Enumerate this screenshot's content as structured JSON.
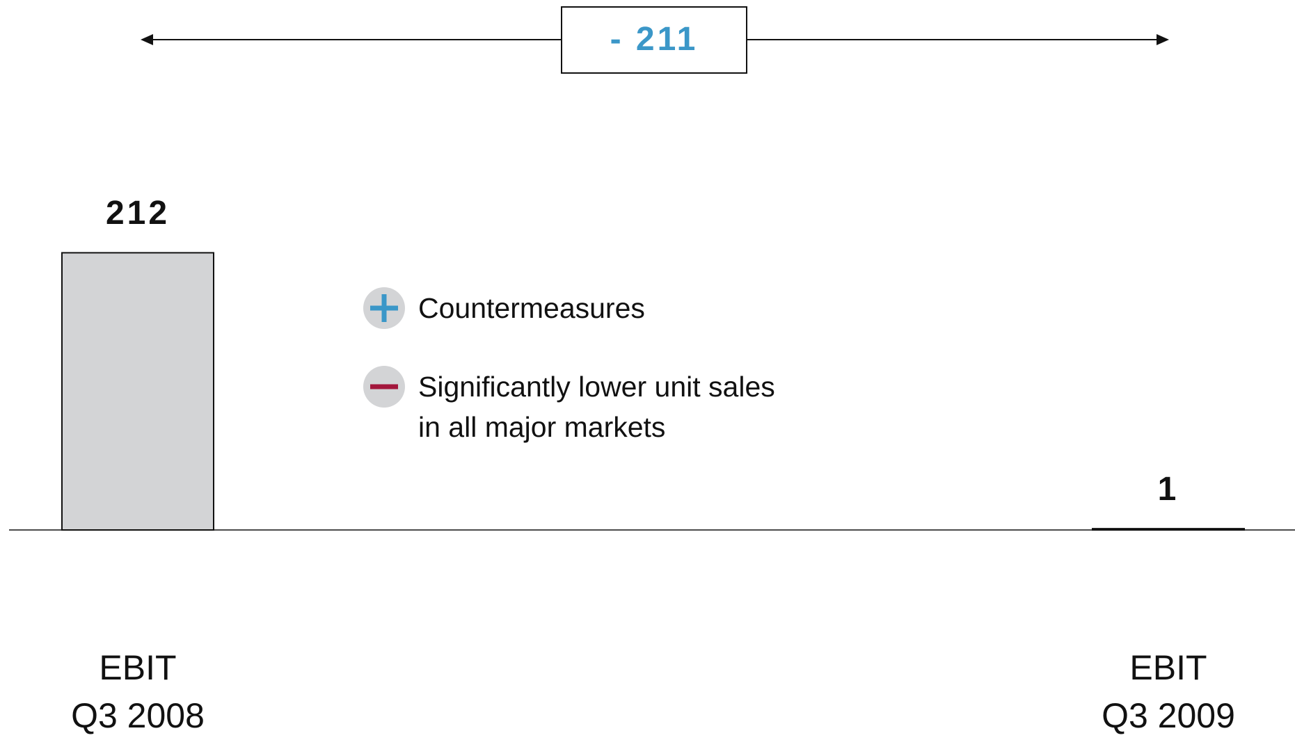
{
  "chart_data": {
    "type": "bar",
    "categories": [
      "EBIT\nQ3 2008",
      "EBIT\nQ3 2009"
    ],
    "values": [
      212,
      1
    ],
    "color": "#d3d4d6",
    "ylim": [
      0,
      300
    ],
    "difference": {
      "value": -211,
      "label": "- 211",
      "color": "#3b97c8"
    },
    "notes": [
      {
        "effect": "positive",
        "color": "#3b97c8",
        "text": "Countermeasures"
      },
      {
        "effect": "negative",
        "color": "#a3173c",
        "text": "Significantly lower unit sales\nin all major markets"
      }
    ]
  }
}
